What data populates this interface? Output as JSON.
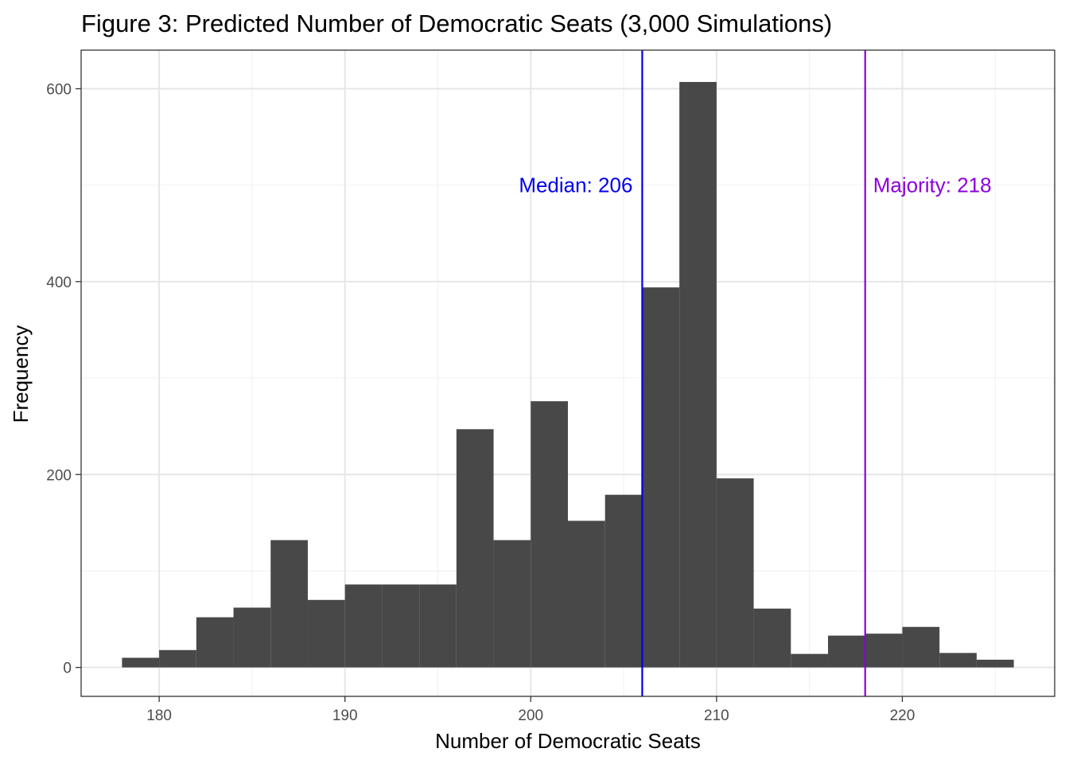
{
  "chart_data": {
    "type": "bar",
    "title": "Figure 3: Predicted Number of Democratic Seats (3,000 Simulations)",
    "xlabel": "Number of Democratic Seats",
    "ylabel": "Frequency",
    "xlim": [
      175.8,
      228.2
    ],
    "ylim": [
      -30,
      640
    ],
    "x_ticks": [
      180,
      190,
      200,
      210,
      220
    ],
    "y_ticks": [
      0,
      200,
      400,
      600
    ],
    "grid": true,
    "legend": "none",
    "bar_color": "#484848",
    "bin_width": 2,
    "bin_starts": [
      178,
      180,
      182,
      184,
      186,
      188,
      190,
      192,
      194,
      196,
      198,
      200,
      202,
      204,
      206,
      208,
      210,
      212,
      214,
      216,
      218,
      220,
      222,
      224
    ],
    "values": [
      10,
      18,
      52,
      62,
      132,
      70,
      86,
      86,
      86,
      247,
      132,
      276,
      152,
      179,
      394,
      607,
      196,
      61,
      14,
      33,
      35,
      42,
      15,
      8
    ],
    "reference_lines": [
      {
        "x": 206,
        "label": "Median: 206",
        "color": "#0000ee",
        "label_side": "left"
      },
      {
        "x": 218,
        "label": "Majority: 218",
        "color": "#8b00e0",
        "label_side": "right"
      }
    ],
    "annotation_y": 500
  }
}
